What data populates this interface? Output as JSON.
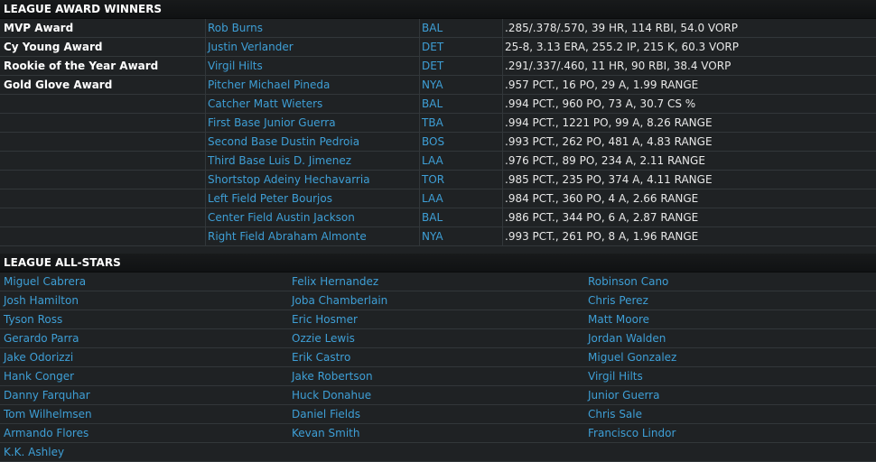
{
  "awards_section": {
    "title": "LEAGUE AWARD WINNERS",
    "rows": [
      {
        "award": "MVP Award",
        "player": "Rob Burns",
        "team": "BAL",
        "stats": ".285/.378/.570, 39 HR, 114 RBI, 54.0 VORP"
      },
      {
        "award": "Cy Young Award",
        "player": "Justin Verlander",
        "team": "DET",
        "stats": "25-8, 3.13 ERA, 255.2 IP, 215 K, 60.3 VORP"
      },
      {
        "award": "Rookie of the Year Award",
        "player": "Virgil Hilts",
        "team": "DET",
        "stats": ".291/.337/.460, 11 HR, 90 RBI, 38.4 VORP"
      },
      {
        "award": "Gold Glove Award",
        "player": "Pitcher Michael Pineda",
        "team": "NYA",
        "stats": ".957 PCT., 16 PO, 29 A, 1.99 RANGE"
      },
      {
        "award": "",
        "player": "Catcher Matt Wieters",
        "team": "BAL",
        "stats": ".994 PCT., 960 PO, 73 A, 30.7 CS %"
      },
      {
        "award": "",
        "player": "First Base Junior Guerra",
        "team": "TBA",
        "stats": ".994 PCT., 1221 PO, 99 A, 8.26 RANGE"
      },
      {
        "award": "",
        "player": "Second Base Dustin Pedroia",
        "team": "BOS",
        "stats": ".993 PCT., 262 PO, 481 A, 4.83 RANGE"
      },
      {
        "award": "",
        "player": "Third Base Luis D. Jimenez",
        "team": "LAA",
        "stats": ".976 PCT., 89 PO, 234 A, 2.11 RANGE"
      },
      {
        "award": "",
        "player": "Shortstop Adeiny Hechavarria",
        "team": "TOR",
        "stats": ".985 PCT., 235 PO, 374 A, 4.11 RANGE"
      },
      {
        "award": "",
        "player": "Left Field Peter Bourjos",
        "team": "LAA",
        "stats": ".984 PCT., 360 PO, 4 A, 2.66 RANGE"
      },
      {
        "award": "",
        "player": "Center Field Austin Jackson",
        "team": "BAL",
        "stats": ".986 PCT., 344 PO, 6 A, 2.87 RANGE"
      },
      {
        "award": "",
        "player": "Right Field Abraham Almonte",
        "team": "NYA",
        "stats": ".993 PCT., 261 PO, 8 A, 1.96 RANGE"
      }
    ]
  },
  "allstars_section": {
    "title": "LEAGUE ALL-STARS",
    "rows": [
      [
        "Miguel Cabrera",
        "Felix Hernandez",
        "Robinson Cano"
      ],
      [
        "Josh Hamilton",
        "Joba Chamberlain",
        "Chris Perez"
      ],
      [
        "Tyson Ross",
        "Eric Hosmer",
        "Matt Moore"
      ],
      [
        "Gerardo Parra",
        "Ozzie Lewis",
        "Jordan Walden"
      ],
      [
        "Jake Odorizzi",
        "Erik Castro",
        "Miguel Gonzalez"
      ],
      [
        "Hank Conger",
        "Jake Robertson",
        "Virgil Hilts"
      ],
      [
        "Danny Farquhar",
        "Huck Donahue",
        "Junior Guerra"
      ],
      [
        "Tom Wilhelmsen",
        "Daniel Fields",
        "Chris Sale"
      ],
      [
        "Armando Flores",
        "Kevan Smith",
        "Francisco Lindor"
      ],
      [
        "K.K. Ashley",
        "",
        ""
      ]
    ]
  },
  "colors": {
    "background": "#1f2224",
    "link": "#3e9fd6",
    "text": "#e8e8e8",
    "header_bg": "#141617",
    "divider": "#32373a"
  }
}
